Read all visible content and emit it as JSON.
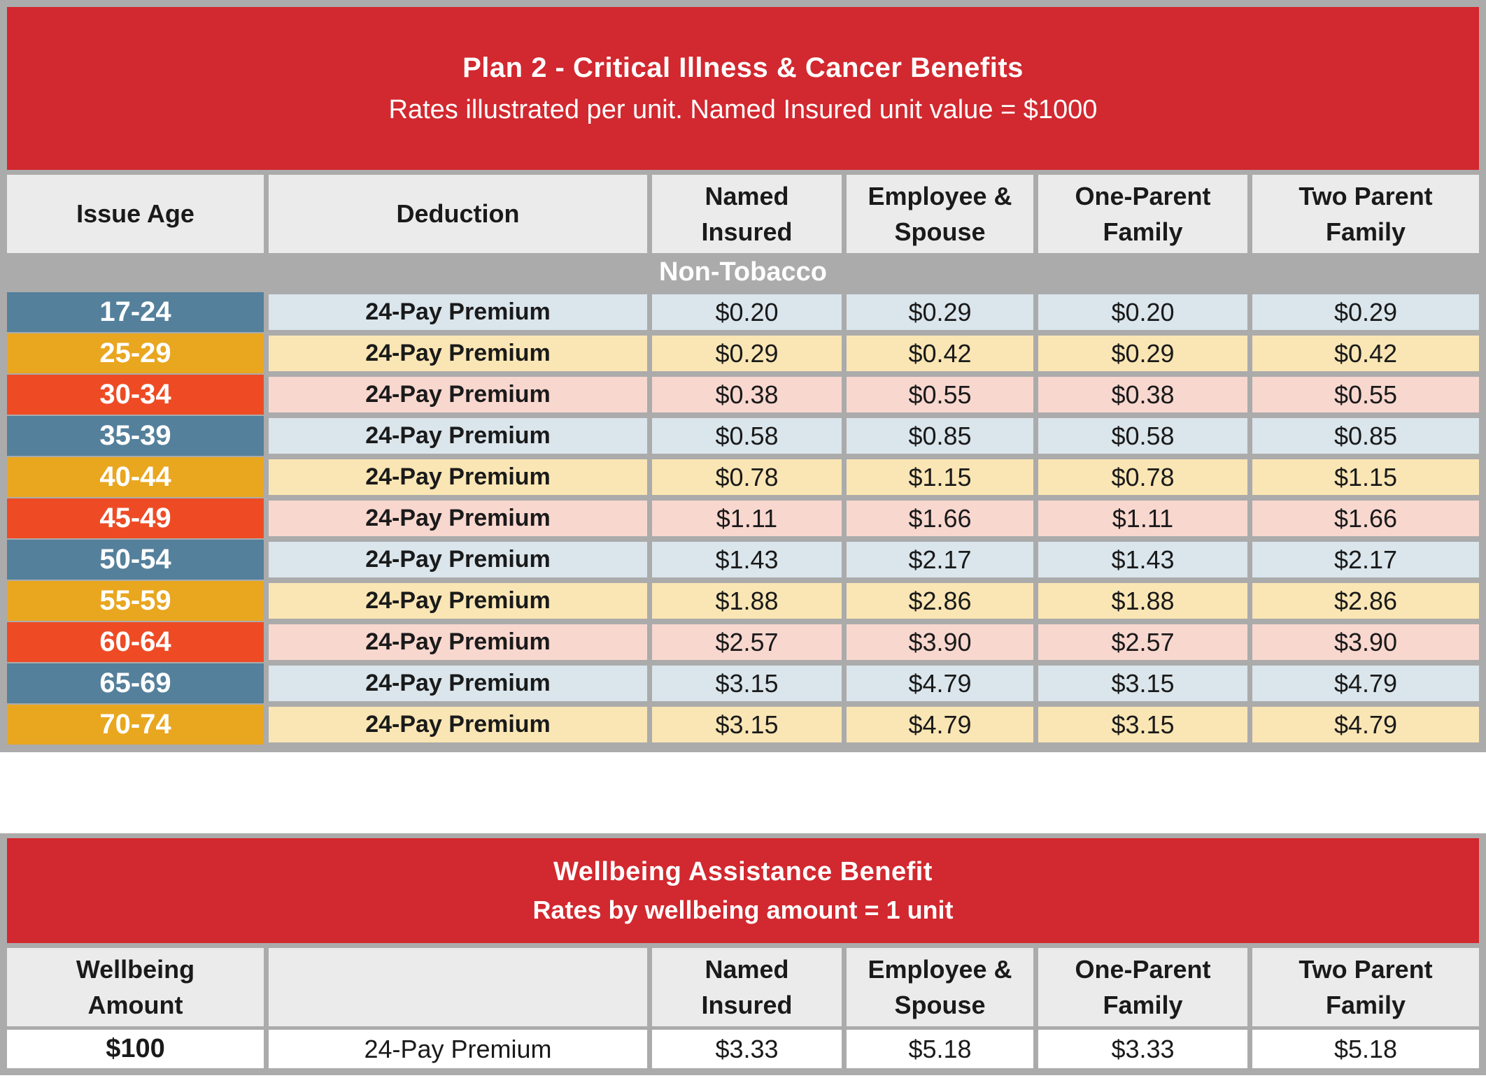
{
  "palette": {
    "brand_red": "#D2282F",
    "frame_gray": "#ABABAB",
    "header_cell_gray": "#EBEBEB",
    "age_blue": "#54809B",
    "age_gold": "#E9A61F",
    "age_red": "#EE4B25",
    "row_pale_blue": "#DAE5EC",
    "row_pale_yellow": "#FAE6B4",
    "row_pale_pink": "#F8D7CF",
    "text_dark": "#1A1A1A",
    "text_white": "#FFFFFF"
  },
  "plan_table": {
    "title": "Plan 2 - Critical Illness & Cancer Benefits",
    "subtitle": "Rates illustrated per unit. Named Insured unit value = $1000",
    "columns": [
      "Issue Age",
      "Deduction",
      "Named\nInsured",
      "Employee &\nSpouse",
      "One-Parent\nFamily",
      "Two Parent\nFamily"
    ],
    "section_label": "Non-Tobacco",
    "rows": [
      {
        "issue_age": "17-24",
        "tone": "blue",
        "deduction": "24-Pay Premium",
        "named_insured": "$0.20",
        "employee_spouse": "$0.29",
        "one_parent_family": "$0.20",
        "two_parent_family": "$0.29"
      },
      {
        "issue_age": "25-29",
        "tone": "gold",
        "deduction": "24-Pay Premium",
        "named_insured": "$0.29",
        "employee_spouse": "$0.42",
        "one_parent_family": "$0.29",
        "two_parent_family": "$0.42"
      },
      {
        "issue_age": "30-34",
        "tone": "red",
        "deduction": "24-Pay Premium",
        "named_insured": "$0.38",
        "employee_spouse": "$0.55",
        "one_parent_family": "$0.38",
        "two_parent_family": "$0.55"
      },
      {
        "issue_age": "35-39",
        "tone": "blue",
        "deduction": "24-Pay Premium",
        "named_insured": "$0.58",
        "employee_spouse": "$0.85",
        "one_parent_family": "$0.58",
        "two_parent_family": "$0.85"
      },
      {
        "issue_age": "40-44",
        "tone": "gold",
        "deduction": "24-Pay Premium",
        "named_insured": "$0.78",
        "employee_spouse": "$1.15",
        "one_parent_family": "$0.78",
        "two_parent_family": "$1.15"
      },
      {
        "issue_age": "45-49",
        "tone": "red",
        "deduction": "24-Pay Premium",
        "named_insured": "$1.11",
        "employee_spouse": "$1.66",
        "one_parent_family": "$1.11",
        "two_parent_family": "$1.66"
      },
      {
        "issue_age": "50-54",
        "tone": "blue",
        "deduction": "24-Pay Premium",
        "named_insured": "$1.43",
        "employee_spouse": "$2.17",
        "one_parent_family": "$1.43",
        "two_parent_family": "$2.17"
      },
      {
        "issue_age": "55-59",
        "tone": "gold",
        "deduction": "24-Pay Premium",
        "named_insured": "$1.88",
        "employee_spouse": "$2.86",
        "one_parent_family": "$1.88",
        "two_parent_family": "$2.86"
      },
      {
        "issue_age": "60-64",
        "tone": "red",
        "deduction": "24-Pay Premium",
        "named_insured": "$2.57",
        "employee_spouse": "$3.90",
        "one_parent_family": "$2.57",
        "two_parent_family": "$3.90"
      },
      {
        "issue_age": "65-69",
        "tone": "blue",
        "deduction": "24-Pay Premium",
        "named_insured": "$3.15",
        "employee_spouse": "$4.79",
        "one_parent_family": "$3.15",
        "two_parent_family": "$4.79"
      },
      {
        "issue_age": "70-74",
        "tone": "gold",
        "deduction": "24-Pay Premium",
        "named_insured": "$3.15",
        "employee_spouse": "$4.79",
        "one_parent_family": "$3.15",
        "two_parent_family": "$4.79"
      }
    ]
  },
  "wellbeing_table": {
    "title": "Wellbeing Assistance Benefit",
    "subtitle": "Rates by wellbeing amount = 1 unit",
    "columns": [
      "Wellbeing\nAmount",
      "",
      "Named\nInsured",
      "Employee &\nSpouse",
      "One-Parent\nFamily",
      "Two Parent\nFamily"
    ],
    "row": {
      "wellbeing_amount": "$100",
      "deduction": "24-Pay Premium",
      "named_insured": "$3.33",
      "employee_spouse": "$5.18",
      "one_parent_family": "$3.33",
      "two_parent_family": "$5.18"
    }
  }
}
